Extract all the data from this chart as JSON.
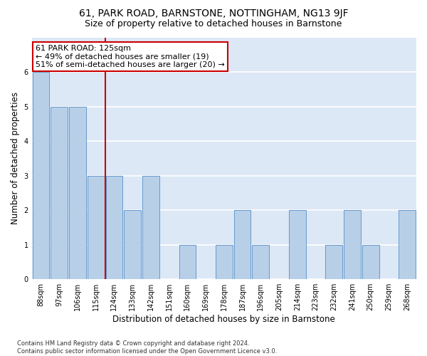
{
  "title1": "61, PARK ROAD, BARNSTONE, NOTTINGHAM, NG13 9JF",
  "title2": "Size of property relative to detached houses in Barnstone",
  "xlabel": "Distribution of detached houses by size in Barnstone",
  "ylabel": "Number of detached properties",
  "categories": [
    "88sqm",
    "97sqm",
    "106sqm",
    "115sqm",
    "124sqm",
    "133sqm",
    "142sqm",
    "151sqm",
    "160sqm",
    "169sqm",
    "178sqm",
    "187sqm",
    "196sqm",
    "205sqm",
    "214sqm",
    "223sqm",
    "232sqm",
    "241sqm",
    "250sqm",
    "259sqm",
    "268sqm"
  ],
  "values": [
    6,
    5,
    5,
    3,
    3,
    2,
    3,
    0,
    1,
    0,
    1,
    2,
    1,
    0,
    2,
    0,
    1,
    2,
    1,
    0,
    2
  ],
  "bar_color": "#b8cfe8",
  "bar_edge_color": "#6699cc",
  "vline_index": 3.5,
  "annotation_text": "61 PARK ROAD: 125sqm\n← 49% of detached houses are smaller (19)\n51% of semi-detached houses are larger (20) →",
  "annotation_box_color": "#ffffff",
  "annotation_box_edge": "#cc0000",
  "annotation_text_color": "#000000",
  "vline_color": "#cc0000",
  "ylim": [
    0,
    7
  ],
  "yticks": [
    0,
    1,
    2,
    3,
    4,
    5,
    6
  ],
  "footnote": "Contains HM Land Registry data © Crown copyright and database right 2024.\nContains public sector information licensed under the Open Government Licence v3.0.",
  "fig_bg_color": "#ffffff",
  "bg_color": "#dce8f5",
  "grid_color": "#ffffff",
  "title1_fontsize": 10,
  "title2_fontsize": 9,
  "annot_fontsize": 8,
  "xlabel_fontsize": 8.5,
  "ylabel_fontsize": 8.5,
  "tick_fontsize": 7,
  "footnote_fontsize": 6
}
